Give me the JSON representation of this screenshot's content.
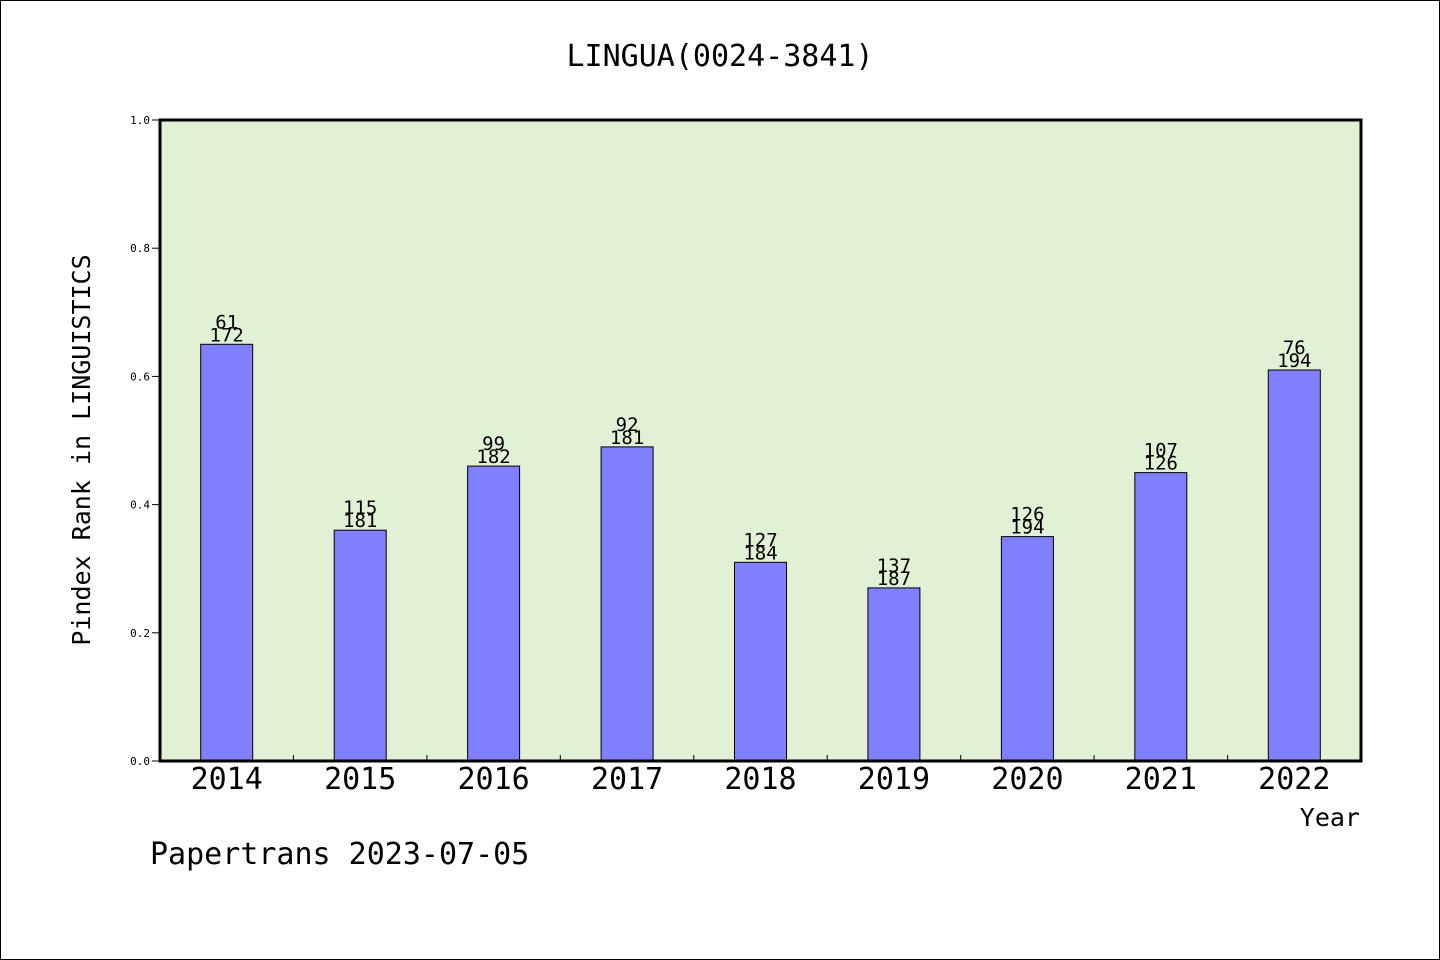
{
  "chart_data": {
    "type": "bar",
    "title": "LINGUA(0024-3841)",
    "xlabel": "Year",
    "ylabel": "Pindex Rank in LINGUISTICS",
    "categories": [
      "2014",
      "2015",
      "2016",
      "2017",
      "2018",
      "2019",
      "2020",
      "2021",
      "2022"
    ],
    "values": [
      0.65,
      0.36,
      0.46,
      0.49,
      0.31,
      0.27,
      0.35,
      0.45,
      0.61
    ],
    "rank_labels": [
      "61",
      "115",
      "99",
      "92",
      "127",
      "137",
      "126",
      "107",
      "76"
    ],
    "total_labels": [
      "172",
      "181",
      "182",
      "181",
      "184",
      "187",
      "194",
      "126",
      "194"
    ],
    "ylim": [
      0,
      1.0
    ],
    "yticks": [
      "0.0",
      "0.2",
      "0.4",
      "0.6",
      "0.8",
      "1.0"
    ],
    "grid": false,
    "colors": {
      "bar": "#8080ff",
      "plot_background": "#e2f0d6",
      "axis": "#000000"
    }
  },
  "footer": {
    "credit": "Papertrans 2023-07-05"
  }
}
